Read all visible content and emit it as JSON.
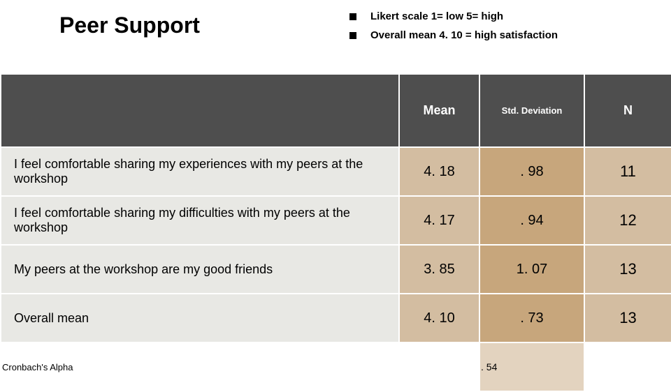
{
  "title": "Peer Support",
  "bullets": [
    "Likert scale  1= low    5= high",
    "Overall mean 4. 10 = high satisfaction"
  ],
  "table": {
    "columns": {
      "label": "",
      "mean": "Mean",
      "std": "Std. Deviation",
      "n": "N"
    },
    "rows": [
      {
        "label": "I feel comfortable sharing my experiences with my peers at the workshop",
        "mean": "4. 18",
        "std": ". 98",
        "n": "11"
      },
      {
        "label": "I feel comfortable sharing my difficulties with my peers at the workshop",
        "mean": "4. 17",
        "std": ". 94",
        "n": "12"
      },
      {
        "label": "My peers at the workshop are my good friends",
        "mean": "3. 85",
        "std": "1. 07",
        "n": "13"
      },
      {
        "label": "Overall mean",
        "mean": "4. 10",
        "std": ". 73",
        "n": "13"
      }
    ],
    "alpha": {
      "label": "Cronbach's Alpha",
      "value": ". 54"
    }
  },
  "colors": {
    "header_bg": "#4e4e4e",
    "label_bg": "#e8e8e4",
    "mean_bg": "#d3bda1",
    "std_bg": "#c7a67c",
    "n_bg": "#d3bda1",
    "alpha_bg": "#e3d3bf"
  }
}
